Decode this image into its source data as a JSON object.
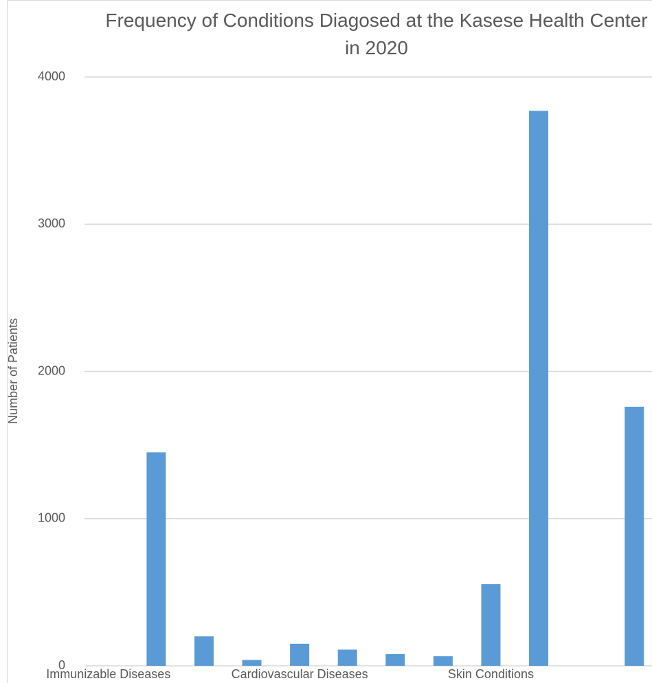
{
  "chart_data": {
    "type": "bar",
    "title": "Frequency of Conditions Diagosed at the Kasese Health Center in 2020",
    "y_label": "Number of Patients",
    "categories": [
      "Immunizable Diseases",
      null,
      null,
      null,
      "Cardiovascular Diseases",
      null,
      null,
      null,
      "Skin Conditions",
      null,
      null,
      null
    ],
    "values": [
      null,
      1450,
      200,
      40,
      150,
      110,
      80,
      65,
      555,
      3770,
      null,
      1760
    ],
    "color": "#5b9bd5",
    "ylim": [
      0,
      4000
    ],
    "yticks": [
      0,
      1000,
      2000,
      3000,
      4000
    ],
    "grid": true
  }
}
